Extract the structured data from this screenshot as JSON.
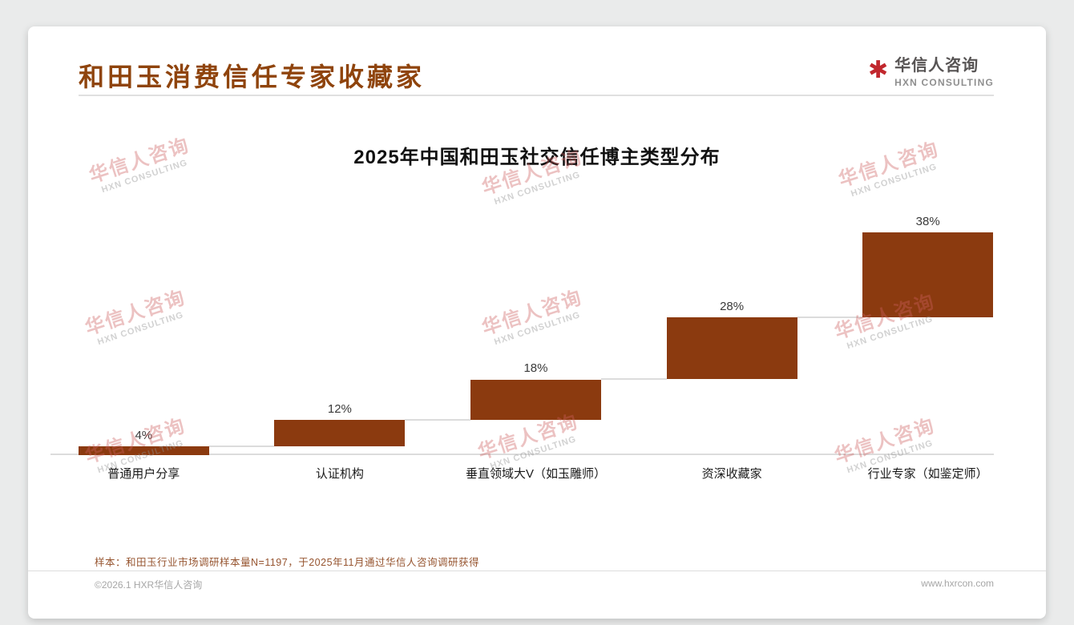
{
  "page": {
    "title": "和田玉消费信任专家收藏家",
    "sample_note": "样本：和田玉行业市场调研样本量N=1197，于2025年11月通过华信人咨询调研获得",
    "footer": {
      "left": "©2026.1 HXR华信人咨询",
      "right": "www.hxrcon.com"
    }
  },
  "logo": {
    "cn": "华信人咨询",
    "en": "HXN CONSULTING",
    "mark_glyph": "✱",
    "mark_color": "#C1272D"
  },
  "watermark": {
    "cn": "华信人咨询",
    "en": "HXN CONSULTING"
  },
  "chart_data": {
    "type": "bar",
    "variant": "waterfall",
    "title": "2025年中国和田玉社交信任博主类型分布",
    "categories": [
      "普通用户分享",
      "认证机构",
      "垂直领域大V（如玉雕师）",
      "资深收藏家",
      "行业专家（如鉴定师）"
    ],
    "values": [
      4,
      12,
      18,
      28,
      38
    ],
    "labels": [
      "4%",
      "12%",
      "18%",
      "28%",
      "38%"
    ],
    "unit": "%",
    "ylim": [
      0,
      100
    ],
    "grid": false,
    "legend": null,
    "bar_color": "#8B3A0F",
    "connector_color": "#dcdcdc"
  },
  "colors": {
    "accent_brown": "#8F440D",
    "note_brown": "#96542F",
    "watermark_red": "rgba(205,95,95,0.38)",
    "watermark_gray": "rgba(145,145,145,0.42)"
  }
}
